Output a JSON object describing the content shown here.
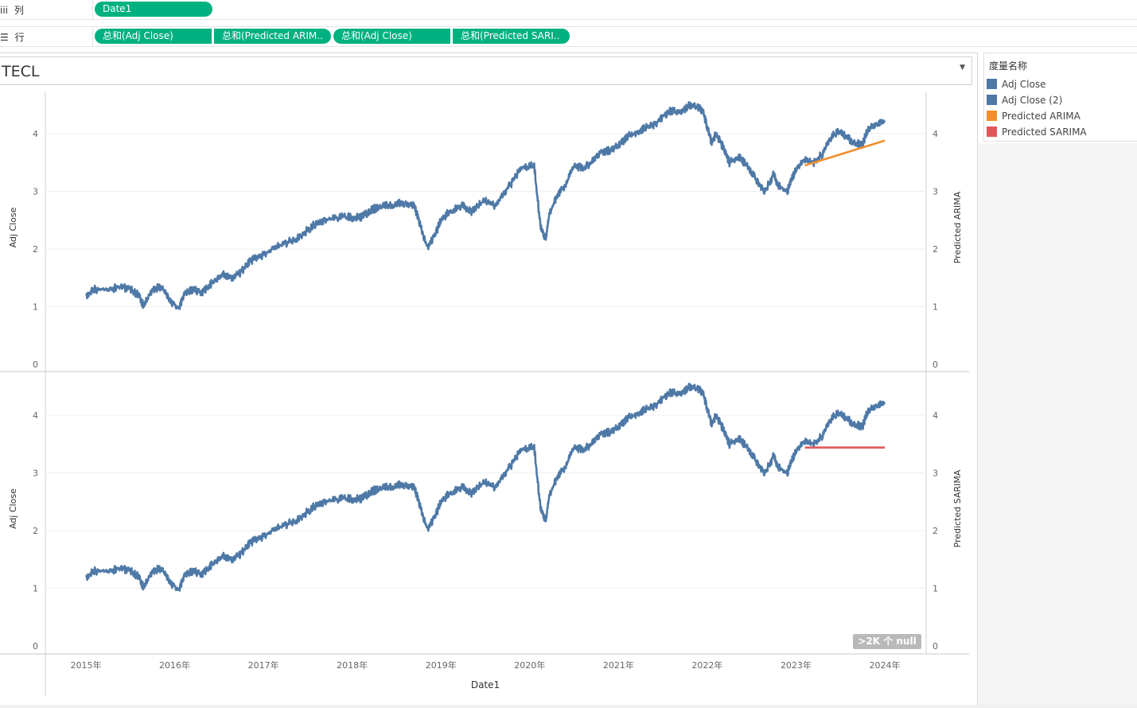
{
  "shelves": {
    "columns": {
      "icon": "iii",
      "label": "列",
      "pills": [
        "Date1"
      ]
    },
    "rows": {
      "icon": "☰",
      "label": "行",
      "pills": [
        "总和(Adj Close)",
        "总和(Predicted ARIM..",
        "总和(Adj Close)",
        "总和(Predicted SARI.."
      ]
    }
  },
  "filter": {
    "title": "TECL"
  },
  "legend": {
    "title": "度量名称",
    "items": [
      {
        "label": "Adj Close",
        "color": "#4e79a7"
      },
      {
        "label": "Adj Close (2)",
        "color": "#4e79a7"
      },
      {
        "label": "Predicted ARIMA",
        "color": "#f28e2b"
      },
      {
        "label": "Predicted SARIMA",
        "color": "#e15759"
      }
    ]
  },
  "null_badge": ">2K 个 null",
  "colors": {
    "actual": "#4e79a7",
    "arima": "#f28e2b",
    "sarima": "#e15759",
    "pill": "#00b180"
  },
  "chart_data": [
    {
      "type": "line",
      "xlabel": "",
      "ylabel": "Adj Close",
      "y2label": "Predicted ARIMA",
      "ylim": [
        0,
        4.6
      ],
      "yticks": [
        0,
        1,
        2,
        3,
        4
      ],
      "series": [
        {
          "name": "Adj Close",
          "x": [
            2015.0,
            2015.1,
            2015.25,
            2015.4,
            2015.5,
            2015.6,
            2015.65,
            2015.75,
            2015.85,
            2015.95,
            2016.05,
            2016.1,
            2016.2,
            2016.3,
            2016.35,
            2016.45,
            2016.55,
            2016.65,
            2016.75,
            2016.85,
            2016.95,
            2017.1,
            2017.25,
            2017.4,
            2017.55,
            2017.7,
            2017.85,
            2018.0,
            2018.1,
            2018.2,
            2018.25,
            2018.35,
            2018.45,
            2018.55,
            2018.7,
            2018.75,
            2018.85,
            2018.95,
            2019.0,
            2019.1,
            2019.25,
            2019.35,
            2019.5,
            2019.6,
            2019.7,
            2019.8,
            2019.9,
            2020.05,
            2020.12,
            2020.18,
            2020.22,
            2020.3,
            2020.4,
            2020.5,
            2020.6,
            2020.7,
            2020.8,
            2020.9,
            2021.0,
            2021.1,
            2021.2,
            2021.3,
            2021.4,
            2021.5,
            2021.6,
            2021.7,
            2021.8,
            2021.9,
            2021.95,
            2022.0,
            2022.05,
            2022.1,
            2022.2,
            2022.25,
            2022.35,
            2022.45,
            2022.55,
            2022.65,
            2022.75,
            2022.8,
            2022.9,
            2022.95,
            2023.0,
            2023.1,
            2023.2,
            2023.3,
            2023.4,
            2023.5,
            2023.55,
            2023.65,
            2023.75,
            2023.8,
            2023.9,
            2024.0
          ],
          "y": [
            1.2,
            1.3,
            1.3,
            1.35,
            1.3,
            1.2,
            1.0,
            1.3,
            1.35,
            1.1,
            0.97,
            1.2,
            1.3,
            1.25,
            1.3,
            1.45,
            1.55,
            1.5,
            1.6,
            1.8,
            1.85,
            2.0,
            2.1,
            2.2,
            2.4,
            2.5,
            2.55,
            2.55,
            2.55,
            2.65,
            2.7,
            2.75,
            2.75,
            2.8,
            2.75,
            2.5,
            2.0,
            2.3,
            2.5,
            2.65,
            2.75,
            2.65,
            2.85,
            2.75,
            2.95,
            3.15,
            3.4,
            3.45,
            2.4,
            2.15,
            2.6,
            2.9,
            3.1,
            3.45,
            3.4,
            3.5,
            3.7,
            3.7,
            3.8,
            3.95,
            4.0,
            4.1,
            4.15,
            4.3,
            4.4,
            4.35,
            4.5,
            4.45,
            4.4,
            4.1,
            3.85,
            4.0,
            3.7,
            3.5,
            3.6,
            3.45,
            3.2,
            3.0,
            3.3,
            3.1,
            3.0,
            3.2,
            3.4,
            3.55,
            3.5,
            3.65,
            3.95,
            4.05,
            3.95,
            3.85,
            3.8,
            4.05,
            4.15,
            4.2
          ]
        },
        {
          "name": "Predicted ARIMA",
          "x": [
            2023.1,
            2024.0
          ],
          "y": [
            3.45,
            3.88
          ]
        }
      ]
    },
    {
      "type": "line",
      "xlabel": "Date1",
      "ylabel": "Adj Close",
      "y2label": "Predicted SARIMA",
      "ylim": [
        0,
        4.6
      ],
      "yticks": [
        0,
        1,
        2,
        3,
        4
      ],
      "xticks": [
        "2015年",
        "2016年",
        "2017年",
        "2018年",
        "2019年",
        "2020年",
        "2021年",
        "2022年",
        "2023年",
        "2024年"
      ],
      "series": [
        {
          "name": "Adj Close (2)",
          "same_as": "Adj Close"
        },
        {
          "name": "Predicted SARIMA",
          "x": [
            2023.1,
            2024.0
          ],
          "y": [
            3.44,
            3.44
          ]
        }
      ]
    }
  ]
}
